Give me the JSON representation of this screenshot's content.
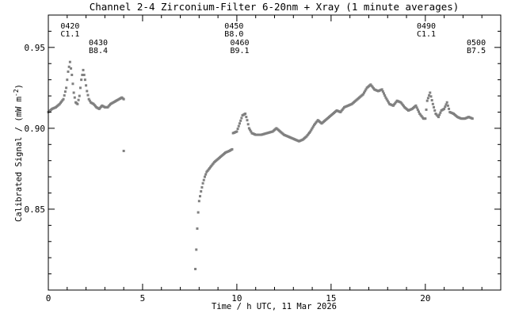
{
  "chart_data": {
    "type": "scatter",
    "title": "Channel 2-4   Zirconium-Filter   6-20nm + Xray   (1 minute averages)",
    "xlabel": "Time / h UTC, 11 Mar 2026",
    "ylabel_prefix": "Calibrated Signal / (mW m",
    "ylabel_exp": "-2",
    "ylabel_suffix": ")",
    "xlim": [
      0,
      24
    ],
    "ylim": [
      0.8,
      0.97
    ],
    "x_ticks": [
      0,
      5,
      10,
      15,
      20
    ],
    "x_tick_labels": [
      "0",
      "5",
      "10",
      "15",
      "20"
    ],
    "y_ticks": [
      0.85,
      0.9,
      0.95
    ],
    "y_tick_labels": [
      "0.85",
      "0.90",
      "0.95"
    ],
    "x_minor_step": 1,
    "y_minor_step": 0.01,
    "grid": false,
    "marker_color": "#808080",
    "annotations": [
      {
        "x": 1.15,
        "y1": "0420",
        "y2": "C1.1",
        "row": 0
      },
      {
        "x": 2.65,
        "y1": "0430",
        "y2": "B8.4",
        "row": 1
      },
      {
        "x": 9.85,
        "y1": "0450",
        "y2": "B8.0",
        "row": 0
      },
      {
        "x": 10.15,
        "y1": "0460",
        "y2": "B9.1",
        "row": 1
      },
      {
        "x": 20.05,
        "y1": "0490",
        "y2": "C1.1",
        "row": 0
      },
      {
        "x": 22.7,
        "y1": "0500",
        "y2": "B7.5",
        "row": 1
      }
    ],
    "series": [
      {
        "segments": [
          {
            "x": [
              0.0,
              0.2,
              0.4,
              0.6,
              0.8,
              0.95,
              1.05,
              1.15,
              1.25,
              1.35,
              1.45,
              1.55,
              1.65,
              1.75,
              1.85,
              1.95,
              2.05,
              2.15,
              2.25,
              2.4,
              2.55,
              2.7,
              2.85,
              3.0,
              3.15,
              3.3,
              3.45,
              3.6,
              3.75,
              3.9,
              4.0
            ],
            "y": [
              0.91,
              0.912,
              0.913,
              0.915,
              0.918,
              0.925,
              0.935,
              0.941,
              0.933,
              0.922,
              0.916,
              0.915,
              0.92,
              0.93,
              0.936,
              0.93,
              0.923,
              0.918,
              0.916,
              0.915,
              0.913,
              0.912,
              0.914,
              0.913,
              0.913,
              0.915,
              0.916,
              0.917,
              0.918,
              0.919,
              0.918
            ]
          },
          {
            "x": [
              4.0
            ],
            "y": [
              0.886
            ]
          },
          {
            "x": [
              7.8,
              7.85,
              7.9,
              7.95,
              8.0,
              8.1,
              8.2,
              8.3,
              8.4,
              8.6,
              8.8,
              9.0,
              9.2,
              9.4,
              9.6,
              9.75
            ],
            "y": [
              0.813,
              0.825,
              0.838,
              0.848,
              0.855,
              0.861,
              0.866,
              0.87,
              0.873,
              0.876,
              0.879,
              0.881,
              0.883,
              0.885,
              0.886,
              0.887
            ]
          },
          {
            "x": [
              9.8,
              10.0,
              10.15,
              10.3,
              10.45,
              10.55,
              10.65,
              10.8,
              11.0,
              11.3,
              11.6,
              11.9,
              12.1,
              12.3,
              12.5,
              12.7,
              12.9,
              13.1,
              13.3,
              13.5,
              13.7,
              13.9,
              14.1,
              14.3,
              14.5,
              14.7,
              14.9,
              15.1,
              15.3,
              15.5,
              15.7,
              15.9,
              16.1,
              16.3,
              16.5,
              16.7,
              16.9,
              17.1,
              17.3,
              17.5,
              17.7,
              17.9,
              18.1,
              18.3,
              18.5,
              18.7,
              18.9,
              19.1,
              19.3,
              19.5,
              19.7,
              19.9,
              20.0,
              20.1,
              20.25,
              20.4,
              20.55,
              20.7,
              20.85,
              21.0,
              21.15,
              21.3,
              21.5,
              21.7,
              21.9,
              22.1,
              22.3,
              22.5
            ],
            "y": [
              0.897,
              0.898,
              0.903,
              0.908,
              0.909,
              0.905,
              0.9,
              0.897,
              0.896,
              0.896,
              0.897,
              0.898,
              0.9,
              0.898,
              0.896,
              0.895,
              0.894,
              0.893,
              0.892,
              0.893,
              0.895,
              0.898,
              0.902,
              0.905,
              0.903,
              0.905,
              0.907,
              0.909,
              0.911,
              0.91,
              0.913,
              0.914,
              0.915,
              0.917,
              0.919,
              0.921,
              0.925,
              0.927,
              0.924,
              0.923,
              0.924,
              0.919,
              0.915,
              0.914,
              0.917,
              0.916,
              0.913,
              0.911,
              0.912,
              0.914,
              0.909,
              0.906,
              0.906,
              0.917,
              0.922,
              0.915,
              0.909,
              0.907,
              0.911,
              0.912,
              0.916,
              0.91,
              0.909,
              0.907,
              0.906,
              0.906,
              0.907,
              0.906
            ]
          }
        ]
      }
    ]
  }
}
